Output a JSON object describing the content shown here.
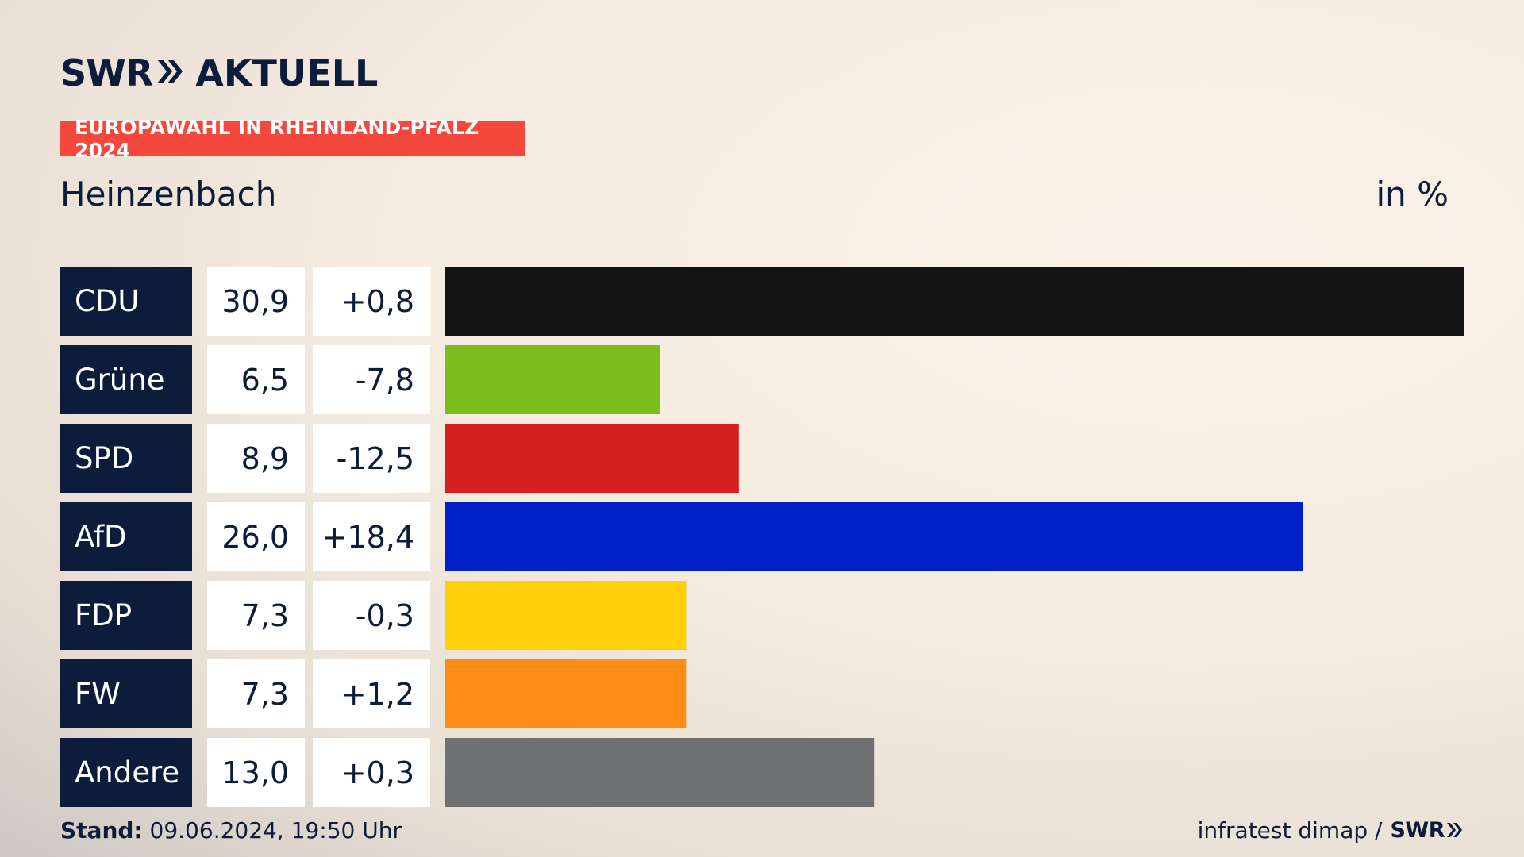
{
  "header": {
    "logo_left": "SWR",
    "logo_right": "AKTUELL",
    "banner": "EUROPAWAHL IN RHEINLAND-PFALZ 2024",
    "subtitle": "Heinzenbach",
    "unit": "in %"
  },
  "footer": {
    "stand_label": "Stand:",
    "stand_value": "09.06.2024, 19:50 Uhr",
    "source": "infratest dimap /",
    "source_logo": "SWR"
  },
  "chart_data": {
    "type": "bar",
    "orientation": "horizontal",
    "title": "Heinzenbach",
    "unit": "in %",
    "xlim": [
      0,
      30.9
    ],
    "categories": [
      "CDU",
      "Grüne",
      "SPD",
      "AfD",
      "FDP",
      "FW",
      "Andere"
    ],
    "values": [
      30.9,
      6.5,
      8.9,
      26.0,
      7.3,
      7.3,
      13.0
    ],
    "value_labels": [
      "30,9",
      "6,5",
      "8,9",
      "26,0",
      "7,3",
      "7,3",
      "13,0"
    ],
    "diff_labels": [
      "+0,8",
      "-7,8",
      "-12,5",
      "+18,4",
      "-0,3",
      "+1,2",
      "+0,3"
    ],
    "diffs": [
      0.8,
      -7.8,
      -12.5,
      18.4,
      -0.3,
      1.2,
      0.3
    ],
    "colors": [
      "#141414",
      "#7bbd1f",
      "#d61f1f",
      "#0220c7",
      "#fecf0a",
      "#fd8d16",
      "#6f7071"
    ]
  }
}
